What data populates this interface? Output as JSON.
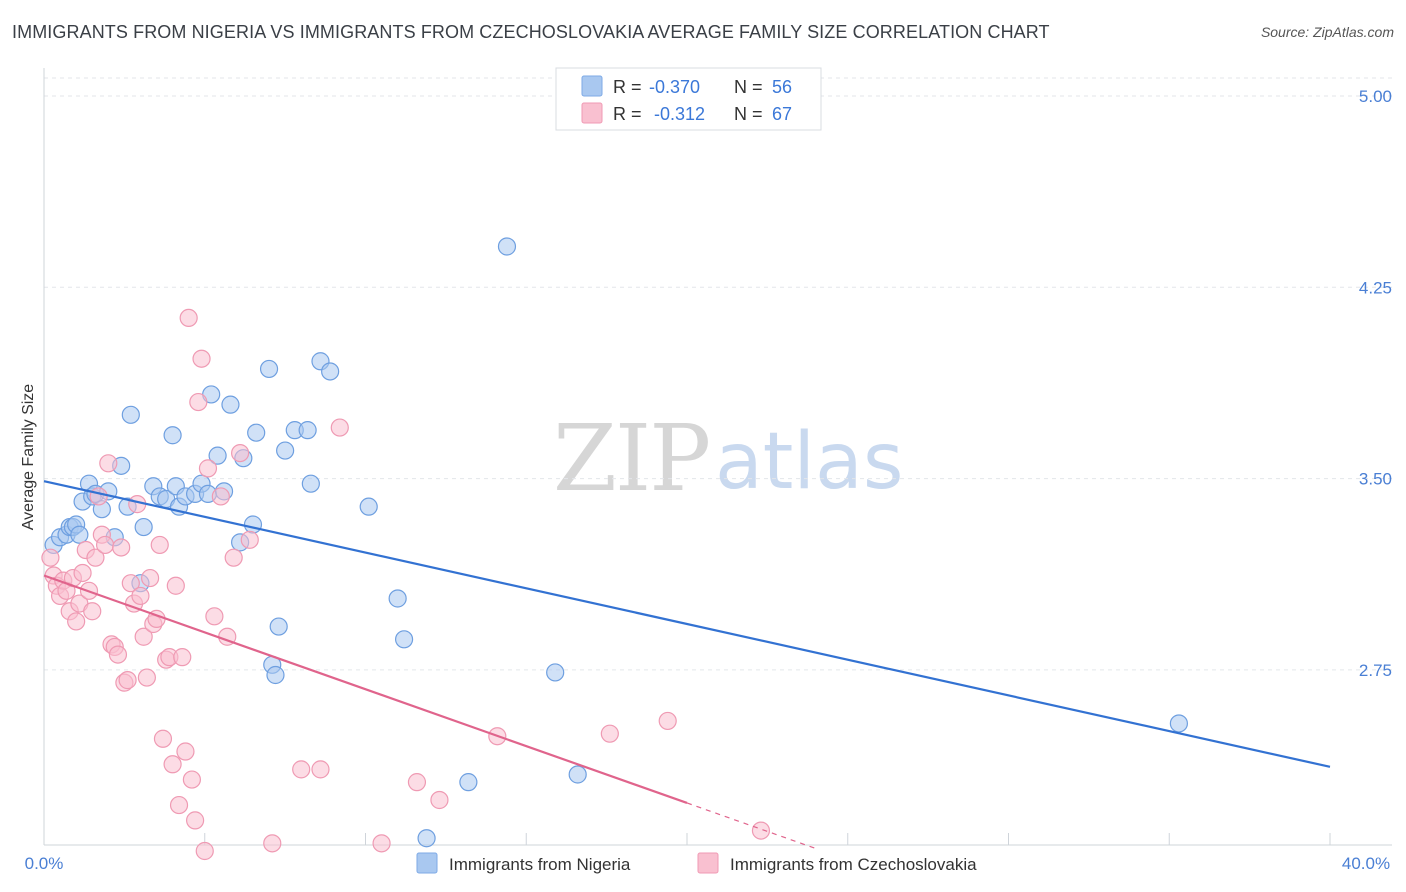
{
  "header": {
    "title": "IMMIGRANTS FROM NIGERIA VS IMMIGRANTS FROM CZECHOSLOVAKIA AVERAGE FAMILY SIZE CORRELATION CHART",
    "source": "Source: ZipAtlas.com"
  },
  "watermark": {
    "zip": "ZIP",
    "atlas": "atlas"
  },
  "legend": {
    "rows": [
      {
        "r_label": "R = ",
        "r_value": "-0.370",
        "n_label": "N = ",
        "n_value": "56",
        "color": "#a9c8f0",
        "stroke": "#7eaae6"
      },
      {
        "r_label": "R = ",
        "r_value": "-0.312",
        "n_label": "N = ",
        "n_value": "67",
        "color": "#f9c0d0",
        "stroke": "#f09ab4"
      }
    ]
  },
  "chart_data": {
    "type": "scatter",
    "title": "IMMIGRANTS FROM NIGERIA VS IMMIGRANTS FROM CZECHOSLOVAKIA AVERAGE FAMILY SIZE CORRELATION CHART",
    "xlabel": "",
    "ylabel": "Average Family Size",
    "xlim": [
      0,
      40
    ],
    "ylim": [
      2.0,
      5.15
    ],
    "x_tick_labels": [
      "0.0%",
      "40.0%"
    ],
    "y_ticks": [
      2.75,
      3.5,
      4.25,
      5.0
    ],
    "y_tick_labels": [
      "2.75",
      "3.50",
      "4.25",
      "5.00"
    ],
    "series": [
      {
        "name": "Immigrants from Nigeria",
        "color": "#a9c8f0",
        "stroke": "#6e9fe0",
        "line_color": "#3372d2",
        "trend": {
          "x0": 0,
          "y0": 3.49,
          "x1": 40,
          "y1": 2.37,
          "dash_from": null
        },
        "points": [
          [
            0.3,
            3.24
          ],
          [
            0.5,
            3.27
          ],
          [
            0.7,
            3.28
          ],
          [
            0.8,
            3.31
          ],
          [
            0.9,
            3.31
          ],
          [
            1.0,
            3.32
          ],
          [
            1.1,
            3.28
          ],
          [
            1.2,
            3.41
          ],
          [
            1.4,
            3.48
          ],
          [
            1.5,
            3.43
          ],
          [
            1.6,
            3.44
          ],
          [
            1.8,
            3.38
          ],
          [
            2.0,
            3.45
          ],
          [
            2.2,
            3.27
          ],
          [
            2.4,
            3.55
          ],
          [
            2.6,
            3.39
          ],
          [
            2.7,
            3.75
          ],
          [
            3.0,
            3.09
          ],
          [
            3.1,
            3.31
          ],
          [
            3.4,
            3.47
          ],
          [
            3.6,
            3.43
          ],
          [
            3.8,
            3.42
          ],
          [
            4.0,
            3.67
          ],
          [
            4.1,
            3.47
          ],
          [
            4.2,
            3.39
          ],
          [
            4.4,
            3.43
          ],
          [
            4.7,
            3.44
          ],
          [
            4.9,
            3.48
          ],
          [
            5.1,
            3.44
          ],
          [
            5.2,
            3.83
          ],
          [
            5.4,
            3.59
          ],
          [
            5.6,
            3.45
          ],
          [
            5.8,
            3.79
          ],
          [
            6.1,
            3.25
          ],
          [
            6.2,
            3.58
          ],
          [
            6.5,
            3.32
          ],
          [
            6.6,
            3.68
          ],
          [
            7.0,
            3.93
          ],
          [
            7.1,
            2.77
          ],
          [
            7.2,
            2.73
          ],
          [
            7.3,
            2.92
          ],
          [
            7.5,
            3.61
          ],
          [
            7.8,
            3.69
          ],
          [
            8.2,
            3.69
          ],
          [
            8.3,
            3.48
          ],
          [
            8.6,
            3.96
          ],
          [
            8.9,
            3.92
          ],
          [
            10.1,
            3.39
          ],
          [
            11.0,
            3.03
          ],
          [
            11.2,
            2.87
          ],
          [
            11.9,
            2.09
          ],
          [
            13.2,
            2.31
          ],
          [
            14.4,
            4.41
          ],
          [
            15.9,
            2.74
          ],
          [
            16.6,
            2.34
          ],
          [
            35.3,
            2.54
          ]
        ]
      },
      {
        "name": "Immigrants from Czechoslovakia",
        "color": "#f9c0d0",
        "stroke": "#ef9ab3",
        "line_color": "#e0648c",
        "trend": {
          "x0": 0,
          "y0": 3.12,
          "x1": 24,
          "y1": 2.05,
          "dash_from": 20
        },
        "points": [
          [
            0.2,
            3.19
          ],
          [
            0.3,
            3.12
          ],
          [
            0.4,
            3.08
          ],
          [
            0.5,
            3.04
          ],
          [
            0.6,
            3.1
          ],
          [
            0.7,
            3.06
          ],
          [
            0.8,
            2.98
          ],
          [
            0.9,
            3.11
          ],
          [
            1.0,
            2.94
          ],
          [
            1.1,
            3.01
          ],
          [
            1.2,
            3.13
          ],
          [
            1.3,
            3.22
          ],
          [
            1.4,
            3.06
          ],
          [
            1.5,
            2.98
          ],
          [
            1.6,
            3.19
          ],
          [
            1.7,
            3.43
          ],
          [
            1.8,
            3.28
          ],
          [
            1.9,
            3.24
          ],
          [
            2.0,
            3.56
          ],
          [
            2.1,
            2.85
          ],
          [
            2.2,
            2.84
          ],
          [
            2.3,
            2.81
          ],
          [
            2.4,
            3.23
          ],
          [
            2.5,
            2.7
          ],
          [
            2.6,
            2.71
          ],
          [
            2.7,
            3.09
          ],
          [
            2.8,
            3.01
          ],
          [
            2.9,
            3.4
          ],
          [
            3.0,
            3.04
          ],
          [
            3.1,
            2.88
          ],
          [
            3.2,
            2.72
          ],
          [
            3.3,
            3.11
          ],
          [
            3.4,
            2.93
          ],
          [
            3.5,
            2.95
          ],
          [
            3.6,
            3.24
          ],
          [
            3.7,
            2.48
          ],
          [
            3.8,
            2.79
          ],
          [
            3.9,
            2.8
          ],
          [
            4.0,
            2.38
          ],
          [
            4.1,
            3.08
          ],
          [
            4.2,
            2.22
          ],
          [
            4.3,
            2.8
          ],
          [
            4.4,
            2.43
          ],
          [
            4.5,
            4.13
          ],
          [
            4.6,
            2.32
          ],
          [
            4.7,
            2.16
          ],
          [
            4.8,
            3.8
          ],
          [
            4.9,
            3.97
          ],
          [
            5.0,
            2.04
          ],
          [
            5.1,
            3.54
          ],
          [
            5.3,
            2.96
          ],
          [
            5.5,
            3.43
          ],
          [
            5.7,
            2.88
          ],
          [
            5.9,
            3.19
          ],
          [
            6.1,
            3.6
          ],
          [
            6.4,
            3.26
          ],
          [
            7.1,
            2.07
          ],
          [
            8.0,
            2.36
          ],
          [
            8.6,
            2.36
          ],
          [
            9.2,
            3.7
          ],
          [
            10.5,
            2.07
          ],
          [
            11.6,
            2.31
          ],
          [
            12.3,
            2.24
          ],
          [
            14.1,
            2.49
          ],
          [
            17.6,
            2.5
          ],
          [
            19.4,
            2.55
          ],
          [
            22.3,
            2.12
          ]
        ]
      }
    ],
    "legend_position": "top-center"
  }
}
